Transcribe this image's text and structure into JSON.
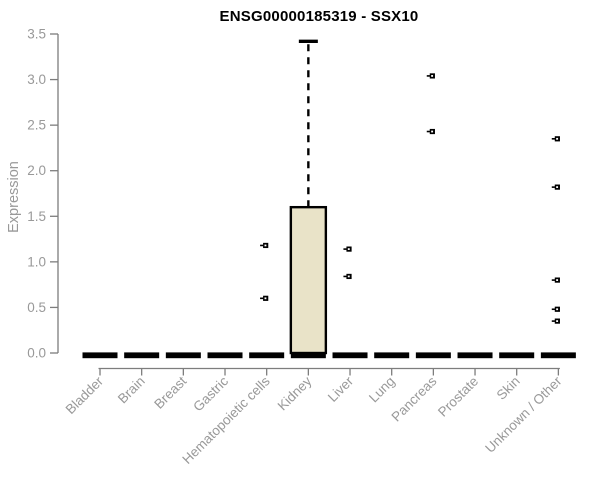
{
  "chart_data": {
    "type": "box",
    "title": "ENSG00000185319 - SSX10",
    "xlabel": "",
    "ylabel": "Expression",
    "ylim": [
      0,
      3.5
    ],
    "ytick_step": 0.5,
    "ytick_labels": [
      "0.0",
      "0.5",
      "1.0",
      "1.5",
      "2.0",
      "2.5",
      "3.0",
      "3.5"
    ],
    "grid": false,
    "legend": "none",
    "categories": [
      "Bladder",
      "Brain",
      "Breast",
      "Gastric",
      "Hematopoietic cells",
      "Kidney",
      "Liver",
      "Lung",
      "Pancreas",
      "Prostate",
      "Skin",
      "Unknown / Other"
    ],
    "boxes": [
      {
        "category": "Bladder",
        "low": 0,
        "q1": 0,
        "median": 0,
        "q3": 0,
        "high": 0,
        "outliers": []
      },
      {
        "category": "Brain",
        "low": 0,
        "q1": 0,
        "median": 0,
        "q3": 0,
        "high": 0,
        "outliers": []
      },
      {
        "category": "Breast",
        "low": 0,
        "q1": 0,
        "median": 0,
        "q3": 0,
        "high": 0,
        "outliers": []
      },
      {
        "category": "Gastric",
        "low": 0,
        "q1": 0,
        "median": 0,
        "q3": 0,
        "high": 0,
        "outliers": []
      },
      {
        "category": "Hematopoietic cells",
        "low": 0,
        "q1": 0,
        "median": 0,
        "q3": 0,
        "high": 0,
        "outliers": [
          1.18,
          0.6
        ]
      },
      {
        "category": "Kidney",
        "low": 0,
        "q1": 0,
        "median": 0,
        "q3": 1.6,
        "high": 3.42,
        "outliers": []
      },
      {
        "category": "Liver",
        "low": 0,
        "q1": 0,
        "median": 0,
        "q3": 0,
        "high": 0,
        "outliers": [
          1.14,
          0.84
        ]
      },
      {
        "category": "Lung",
        "low": 0,
        "q1": 0,
        "median": 0,
        "q3": 0,
        "high": 0,
        "outliers": []
      },
      {
        "category": "Pancreas",
        "low": 0,
        "q1": 0,
        "median": 0,
        "q3": 0,
        "high": 0,
        "outliers": [
          3.04,
          2.43
        ]
      },
      {
        "category": "Prostate",
        "low": 0,
        "q1": 0,
        "median": 0,
        "q3": 0,
        "high": 0,
        "outliers": []
      },
      {
        "category": "Skin",
        "low": 0,
        "q1": 0,
        "median": 0,
        "q3": 0,
        "high": 0,
        "outliers": []
      },
      {
        "category": "Unknown / Other",
        "low": 0,
        "q1": 0,
        "median": 0,
        "q3": 0,
        "high": 0,
        "outliers": [
          2.35,
          1.82,
          0.8,
          0.48,
          0.35
        ]
      }
    ],
    "colors": {
      "box_fill": "#e9e3c8",
      "box_stroke": "#000000",
      "median": "#000000",
      "outlier": "#000000",
      "axis_line": "#7d7d7d",
      "tick_label": "#999999",
      "title": "#000000",
      "background": "#ffffff"
    }
  }
}
